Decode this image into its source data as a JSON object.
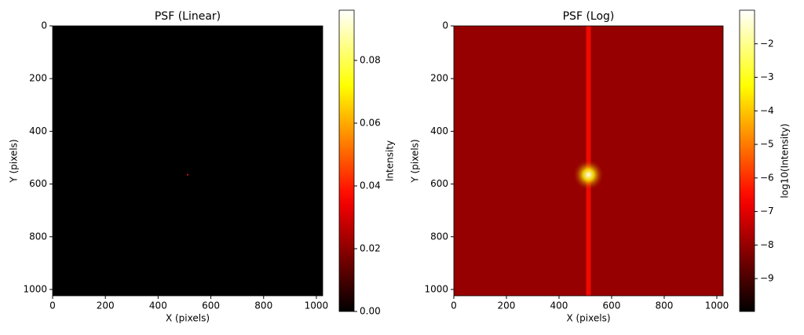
{
  "chart_data": [
    {
      "type": "heatmap",
      "title": "PSF (Linear)",
      "x_label": "X (pixels)",
      "y_label": "Y (pixels)",
      "xlim": [
        0,
        1024
      ],
      "ylim": [
        1024,
        0
      ],
      "xticks": [
        0,
        200,
        400,
        600,
        800,
        1000
      ],
      "yticks": [
        0,
        200,
        400,
        600,
        800,
        1000
      ],
      "colormap": "hot",
      "background": 0,
      "peak": {
        "x": 512,
        "y": 565,
        "value": 0.096
      },
      "colorbar": {
        "label": "Intensity",
        "lim": [
          0,
          0.096
        ],
        "ticks": [
          {
            "value": 0,
            "label": "0.00"
          },
          {
            "value": 0.02,
            "label": "0.02"
          },
          {
            "value": 0.04,
            "label": "0.04"
          },
          {
            "value": 0.06,
            "label": "0.06"
          },
          {
            "value": 0.08,
            "label": "0.08"
          }
        ]
      }
    },
    {
      "type": "heatmap",
      "title": "PSF (Log)",
      "x_label": "X (pixels)",
      "y_label": "Y (pixels)",
      "xlim": [
        0,
        1024
      ],
      "ylim": [
        1024,
        0
      ],
      "xticks": [
        0,
        200,
        400,
        600,
        800,
        1000
      ],
      "yticks": [
        0,
        200,
        400,
        600,
        800,
        1000
      ],
      "colormap": "hot",
      "background": -8,
      "peak": {
        "x": 512,
        "y": 565,
        "value": -1.0
      },
      "colorbar": {
        "label": "log10(Intensity)",
        "lim": [
          -9.98,
          -1.0
        ],
        "ticks": [
          {
            "value": -9,
            "label": "−9"
          },
          {
            "value": -8,
            "label": "−8"
          },
          {
            "value": -7,
            "label": "−7"
          },
          {
            "value": -6,
            "label": "−6"
          },
          {
            "value": -5,
            "label": "−5"
          },
          {
            "value": -4,
            "label": "−4"
          },
          {
            "value": -3,
            "label": "−3"
          },
          {
            "value": -2,
            "label": "−2"
          }
        ]
      }
    }
  ]
}
